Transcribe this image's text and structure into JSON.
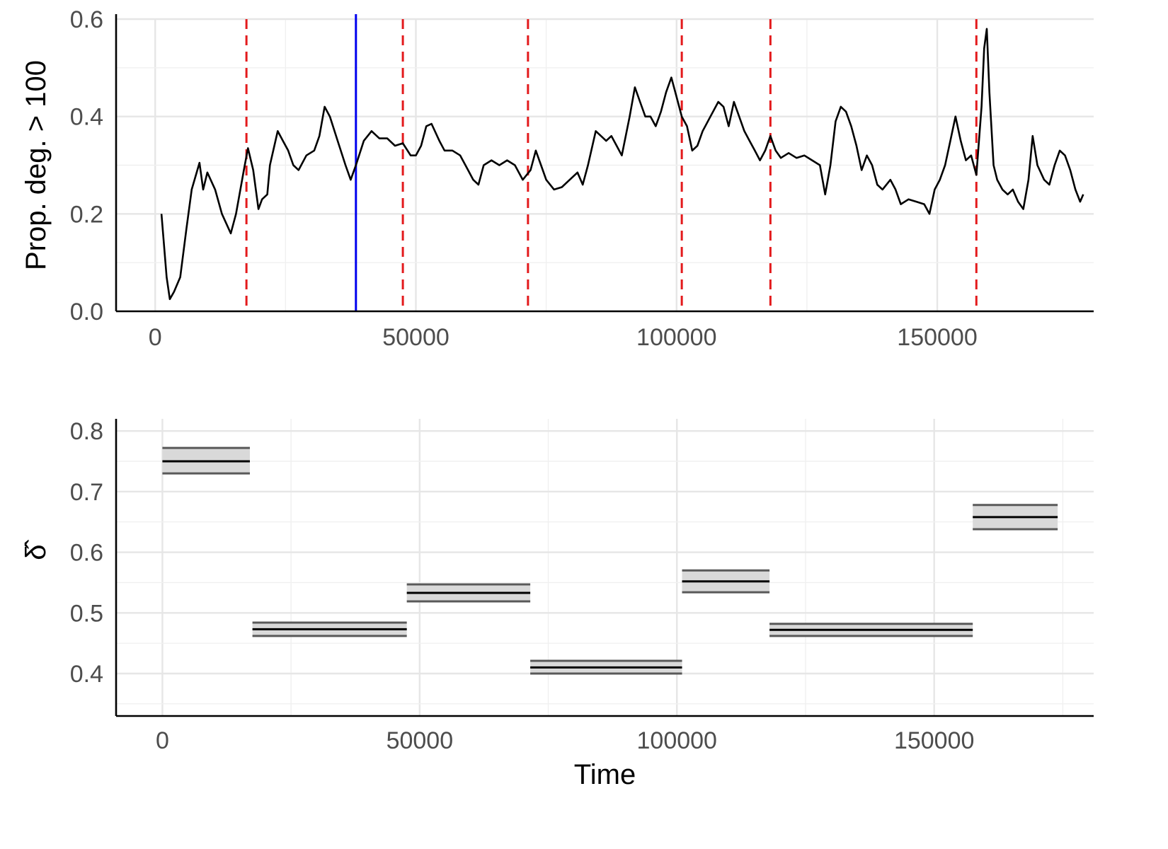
{
  "chart_data": [
    {
      "type": "line",
      "title": "",
      "xlabel": "",
      "ylabel": "Prop. deg. > 100",
      "xlim": [
        -7500,
        180000
      ],
      "ylim": [
        0,
        0.6
      ],
      "x_ticks": [
        0,
        50000,
        100000,
        150000
      ],
      "x_tick_labels": [
        "0",
        "50000",
        "100000",
        "150000"
      ],
      "y_ticks": [
        0,
        0.2,
        0.4,
        0.6
      ],
      "y_tick_labels": [
        "0.0",
        "0.2",
        "0.4",
        "0.6"
      ],
      "grid": true,
      "legend": "none",
      "series": [
        {
          "color": "#000000",
          "points": [
            [
              1200,
              0.2
            ],
            [
              2200,
              0.07
            ],
            [
              2800,
              0.025
            ],
            [
              3600,
              0.04
            ],
            [
              4800,
              0.07
            ],
            [
              6000,
              0.17
            ],
            [
              7000,
              0.25
            ],
            [
              8500,
              0.305
            ],
            [
              9200,
              0.25
            ],
            [
              10000,
              0.285
            ],
            [
              11500,
              0.25
            ],
            [
              12800,
              0.2
            ],
            [
              14500,
              0.16
            ],
            [
              15500,
              0.2
            ],
            [
              17000,
              0.29
            ],
            [
              17800,
              0.335
            ],
            [
              18800,
              0.29
            ],
            [
              19800,
              0.21
            ],
            [
              20500,
              0.23
            ],
            [
              21500,
              0.24
            ],
            [
              22000,
              0.3
            ],
            [
              23500,
              0.37
            ],
            [
              24500,
              0.35
            ],
            [
              25500,
              0.33
            ],
            [
              26500,
              0.3
            ],
            [
              27500,
              0.29
            ],
            [
              29000,
              0.32
            ],
            [
              30500,
              0.33
            ],
            [
              31500,
              0.36
            ],
            [
              32500,
              0.42
            ],
            [
              33500,
              0.4
            ],
            [
              35000,
              0.35
            ],
            [
              36500,
              0.3
            ],
            [
              37500,
              0.27
            ],
            [
              38500,
              0.3
            ],
            [
              40000,
              0.35
            ],
            [
              41500,
              0.37
            ],
            [
              43000,
              0.355
            ],
            [
              44500,
              0.355
            ],
            [
              46000,
              0.34
            ],
            [
              47500,
              0.345
            ],
            [
              49000,
              0.32
            ],
            [
              50000,
              0.32
            ],
            [
              51000,
              0.34
            ],
            [
              52000,
              0.38
            ],
            [
              53000,
              0.385
            ],
            [
              54500,
              0.35
            ],
            [
              55500,
              0.33
            ],
            [
              57000,
              0.33
            ],
            [
              58500,
              0.32
            ],
            [
              60000,
              0.29
            ],
            [
              61000,
              0.27
            ],
            [
              62000,
              0.26
            ],
            [
              63000,
              0.3
            ],
            [
              64500,
              0.31
            ],
            [
              66000,
              0.3
            ],
            [
              67500,
              0.31
            ],
            [
              69000,
              0.3
            ],
            [
              70500,
              0.27
            ],
            [
              72000,
              0.29
            ],
            [
              73000,
              0.33
            ],
            [
              74000,
              0.3
            ],
            [
              75000,
              0.27
            ],
            [
              76500,
              0.25
            ],
            [
              78000,
              0.255
            ],
            [
              79500,
              0.27
            ],
            [
              81000,
              0.285
            ],
            [
              82000,
              0.26
            ],
            [
              83000,
              0.3
            ],
            [
              84500,
              0.37
            ],
            [
              85500,
              0.36
            ],
            [
              86500,
              0.35
            ],
            [
              87500,
              0.36
            ],
            [
              88500,
              0.34
            ],
            [
              89500,
              0.32
            ],
            [
              91000,
              0.4
            ],
            [
              92000,
              0.46
            ],
            [
              93000,
              0.43
            ],
            [
              94000,
              0.4
            ],
            [
              95000,
              0.4
            ],
            [
              96000,
              0.38
            ],
            [
              97000,
              0.41
            ],
            [
              98000,
              0.45
            ],
            [
              99000,
              0.48
            ],
            [
              100000,
              0.44
            ],
            [
              101000,
              0.4
            ],
            [
              102000,
              0.38
            ],
            [
              103000,
              0.33
            ],
            [
              104000,
              0.34
            ],
            [
              105000,
              0.37
            ],
            [
              106500,
              0.4
            ],
            [
              108000,
              0.43
            ],
            [
              109000,
              0.42
            ],
            [
              110000,
              0.38
            ],
            [
              111000,
              0.43
            ],
            [
              112000,
              0.4
            ],
            [
              113000,
              0.37
            ],
            [
              114000,
              0.35
            ],
            [
              115000,
              0.33
            ],
            [
              116000,
              0.31
            ],
            [
              117000,
              0.33
            ],
            [
              118000,
              0.36
            ],
            [
              119000,
              0.33
            ],
            [
              120000,
              0.315
            ],
            [
              121500,
              0.325
            ],
            [
              123000,
              0.315
            ],
            [
              124500,
              0.32
            ],
            [
              126000,
              0.31
            ],
            [
              127500,
              0.3
            ],
            [
              128500,
              0.24
            ],
            [
              129500,
              0.3
            ],
            [
              130500,
              0.39
            ],
            [
              131500,
              0.42
            ],
            [
              132500,
              0.41
            ],
            [
              133500,
              0.38
            ],
            [
              134500,
              0.34
            ],
            [
              135500,
              0.29
            ],
            [
              136500,
              0.32
            ],
            [
              137500,
              0.3
            ],
            [
              138500,
              0.26
            ],
            [
              139500,
              0.25
            ],
            [
              141000,
              0.27
            ],
            [
              142000,
              0.25
            ],
            [
              143000,
              0.22
            ],
            [
              144500,
              0.23
            ],
            [
              146000,
              0.225
            ],
            [
              147500,
              0.22
            ],
            [
              148500,
              0.2
            ],
            [
              149500,
              0.25
            ],
            [
              150500,
              0.27
            ],
            [
              151500,
              0.3
            ],
            [
              152500,
              0.35
            ],
            [
              153500,
              0.4
            ],
            [
              154500,
              0.35
            ],
            [
              155500,
              0.31
            ],
            [
              156500,
              0.32
            ],
            [
              157500,
              0.28
            ],
            [
              158500,
              0.42
            ],
            [
              159000,
              0.54
            ],
            [
              159500,
              0.58
            ],
            [
              160000,
              0.45
            ],
            [
              160800,
              0.3
            ],
            [
              161500,
              0.27
            ],
            [
              162500,
              0.25
            ],
            [
              163500,
              0.24
            ],
            [
              164500,
              0.25
            ],
            [
              165500,
              0.225
            ],
            [
              166500,
              0.21
            ],
            [
              167500,
              0.27
            ],
            [
              168300,
              0.36
            ],
            [
              169200,
              0.3
            ],
            [
              170500,
              0.27
            ],
            [
              171500,
              0.26
            ],
            [
              172500,
              0.3
            ],
            [
              173500,
              0.33
            ],
            [
              174500,
              0.32
            ],
            [
              175500,
              0.29
            ],
            [
              176500,
              0.25
            ],
            [
              177400,
              0.225
            ],
            [
              178000,
              0.24
            ]
          ]
        }
      ],
      "vlines_dashed": {
        "color": "#e31a1c",
        "x": [
          17500,
          47500,
          71500,
          101000,
          118000,
          157500
        ]
      },
      "vline_solid": {
        "color": "#0000ee",
        "x": 38500
      }
    },
    {
      "type": "line",
      "title": "",
      "xlabel": "Time",
      "ylabel": "δ̂",
      "xlim": [
        -9000,
        181000
      ],
      "ylim": [
        0.33,
        0.82
      ],
      "x_ticks": [
        0,
        50000,
        100000,
        150000
      ],
      "x_tick_labels": [
        "0",
        "50000",
        "100000",
        "150000"
      ],
      "y_ticks": [
        0.4,
        0.5,
        0.6,
        0.7,
        0.8
      ],
      "y_tick_labels": [
        "0.4",
        "0.5",
        "0.6",
        "0.7",
        "0.8"
      ],
      "grid": true,
      "legend": "none",
      "colors": {
        "band_fill": "#d9d9d9",
        "band_edge": "#595959",
        "estimate": "#000000"
      },
      "segments": [
        {
          "start": 0,
          "end": 17000,
          "estimate": 0.75,
          "lower": 0.73,
          "upper": 0.772
        },
        {
          "start": 17500,
          "end": 47500,
          "estimate": 0.473,
          "lower": 0.462,
          "upper": 0.484
        },
        {
          "start": 47500,
          "end": 71500,
          "estimate": 0.533,
          "lower": 0.519,
          "upper": 0.547
        },
        {
          "start": 71500,
          "end": 101000,
          "estimate": 0.41,
          "lower": 0.4,
          "upper": 0.421
        },
        {
          "start": 101000,
          "end": 118000,
          "estimate": 0.552,
          "lower": 0.534,
          "upper": 0.57
        },
        {
          "start": 118000,
          "end": 157500,
          "estimate": 0.472,
          "lower": 0.462,
          "upper": 0.482
        },
        {
          "start": 157500,
          "end": 174000,
          "estimate": 0.658,
          "lower": 0.638,
          "upper": 0.678
        }
      ]
    }
  ]
}
